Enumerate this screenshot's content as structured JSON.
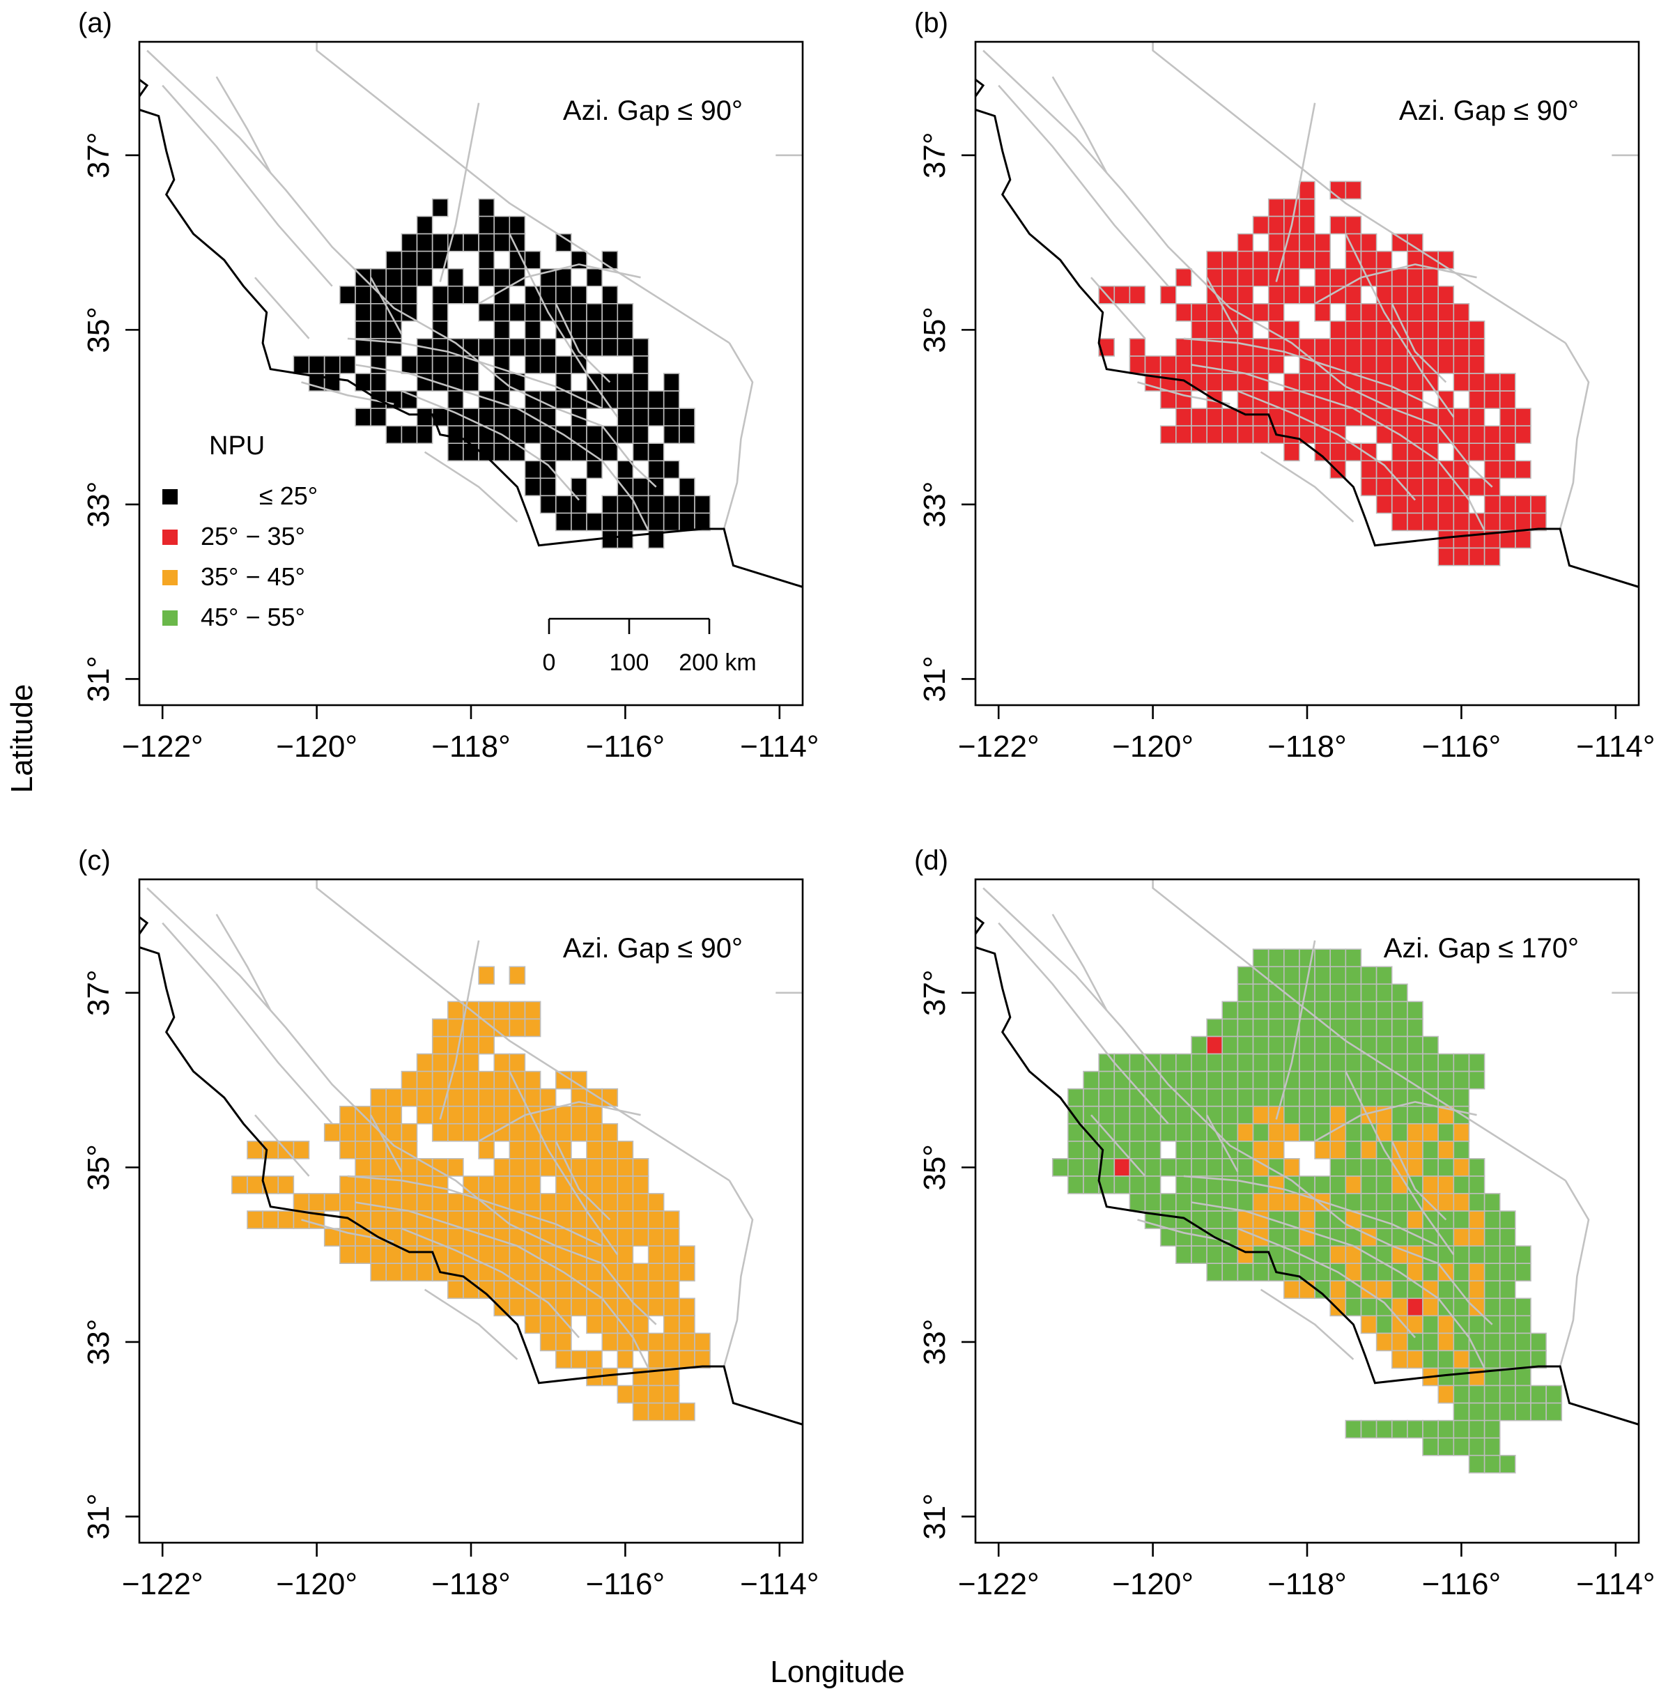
{
  "axis": {
    "xlabel": "Longitude",
    "ylabel": "Latitude",
    "xticks": [
      -122,
      -120,
      -118,
      -116,
      -114
    ],
    "yticks": [
      31,
      33,
      35,
      37
    ],
    "xtick_labels": [
      "−122°",
      "−120°",
      "−118°",
      "−116°",
      "−114°"
    ],
    "ytick_labels": [
      "31°",
      "33°",
      "35°",
      "37°"
    ],
    "xlim": [
      -122.3,
      -113.7
    ],
    "ylim": [
      30.7,
      38.3
    ]
  },
  "legend": {
    "title": "NPU",
    "items": [
      {
        "label": "≤ 25°",
        "color": "#000000"
      },
      {
        "label": "25° − 35°",
        "color": "#e8262b"
      },
      {
        "label": "35° − 45°",
        "color": "#f5a623"
      },
      {
        "label": "45° − 55°",
        "color": "#6ab84a"
      }
    ]
  },
  "scale_bar": {
    "labels": [
      "0",
      "100",
      "200 km"
    ],
    "length_km": 200
  },
  "panels": [
    {
      "label": "(a)",
      "annotation": "Azi. Gap ≤ 90°",
      "fill": "#000000"
    },
    {
      "label": "(b)",
      "annotation": "Azi. Gap ≤ 90°",
      "fill": "#e8262b"
    },
    {
      "label": "(c)",
      "annotation": "Azi. Gap ≤ 90°",
      "fill": "#f5a623"
    },
    {
      "label": "(d)",
      "annotation": "Azi. Gap ≤ 170°",
      "fill": "#6ab84a",
      "secondary_fill": "#f5a623"
    }
  ],
  "colors": {
    "coastline": "#000000",
    "faults": "#c2c2c2",
    "cell_border": "#bdbdbd"
  }
}
